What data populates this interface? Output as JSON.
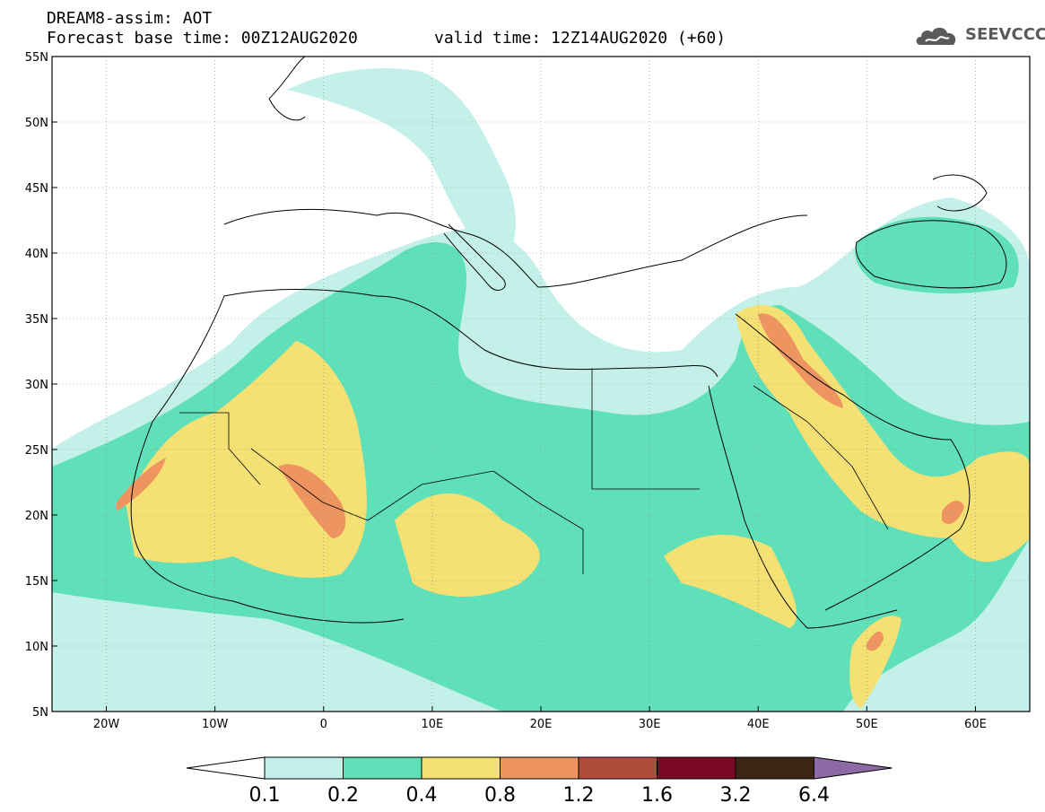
{
  "header": {
    "line1": "DREAM8-assim: AOT",
    "line2_base": "Forecast base time: 00Z12AUG2020",
    "line2_valid": "valid time: 12Z14AUG2020 (+60)"
  },
  "logo": {
    "text": "SEEVCCC",
    "icon": "cloud-icon"
  },
  "map": {
    "lon_range": [
      -25,
      65
    ],
    "lat_range": [
      5,
      55
    ],
    "lat_labels": [
      "55N",
      "50N",
      "45N",
      "40N",
      "35N",
      "30N",
      "25N",
      "20N",
      "15N",
      "10N",
      "5N"
    ],
    "lat_values": [
      55,
      50,
      45,
      40,
      35,
      30,
      25,
      20,
      15,
      10,
      5
    ],
    "lon_labels": [
      "20W",
      "10W",
      "0",
      "10E",
      "20E",
      "30E",
      "40E",
      "50E",
      "60E"
    ],
    "lon_values": [
      -20,
      -10,
      0,
      10,
      20,
      30,
      40,
      50,
      60
    ]
  },
  "colorbar": {
    "labels": [
      "0.1",
      "0.2",
      "0.4",
      "0.8",
      "1.2",
      "1.6",
      "3.2",
      "6.4"
    ],
    "colors": [
      "#ffffff",
      "#c4f0ea",
      "#5fe0b8",
      "#f5e173",
      "#ed9460",
      "#b04d3a",
      "#7a0a24",
      "#3d2414",
      "#8d6aa5"
    ]
  }
}
